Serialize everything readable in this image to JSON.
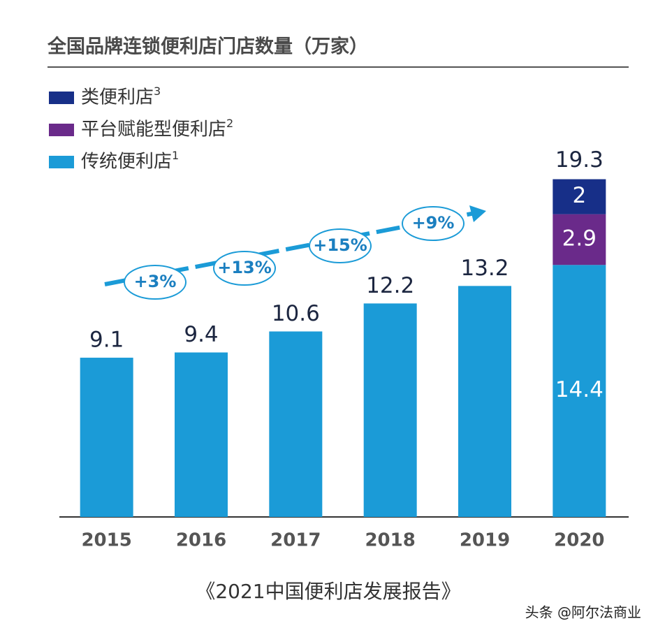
{
  "chart_data": {
    "type": "stacked_bar",
    "title": "全国品牌连锁便利店门店数量（万家）",
    "categories": [
      "2015",
      "2016",
      "2017",
      "2018",
      "2019",
      "2020"
    ],
    "series": [
      {
        "name": "传统便利店",
        "footnote_mark": "1",
        "color": "#1b9bd7",
        "values": [
          9.1,
          9.4,
          10.6,
          12.2,
          13.2,
          14.4
        ]
      },
      {
        "name": "平台赋能型便利店",
        "footnote_mark": "2",
        "color": "#6a2a8a",
        "values": [
          null,
          null,
          null,
          null,
          null,
          2.9
        ]
      },
      {
        "name": "类便利店",
        "footnote_mark": "3",
        "color": "#172f88",
        "values": [
          null,
          null,
          null,
          null,
          null,
          2.0
        ]
      }
    ],
    "totals": [
      null,
      null,
      null,
      null,
      null,
      19.3
    ],
    "growth_labels": [
      "+3%",
      "+13%",
      "+15%",
      "+9%"
    ],
    "ylim": [
      0,
      20
    ],
    "source": "《2021中国便利店发展报告》",
    "watermark": "头条 @阿尔法商业"
  }
}
